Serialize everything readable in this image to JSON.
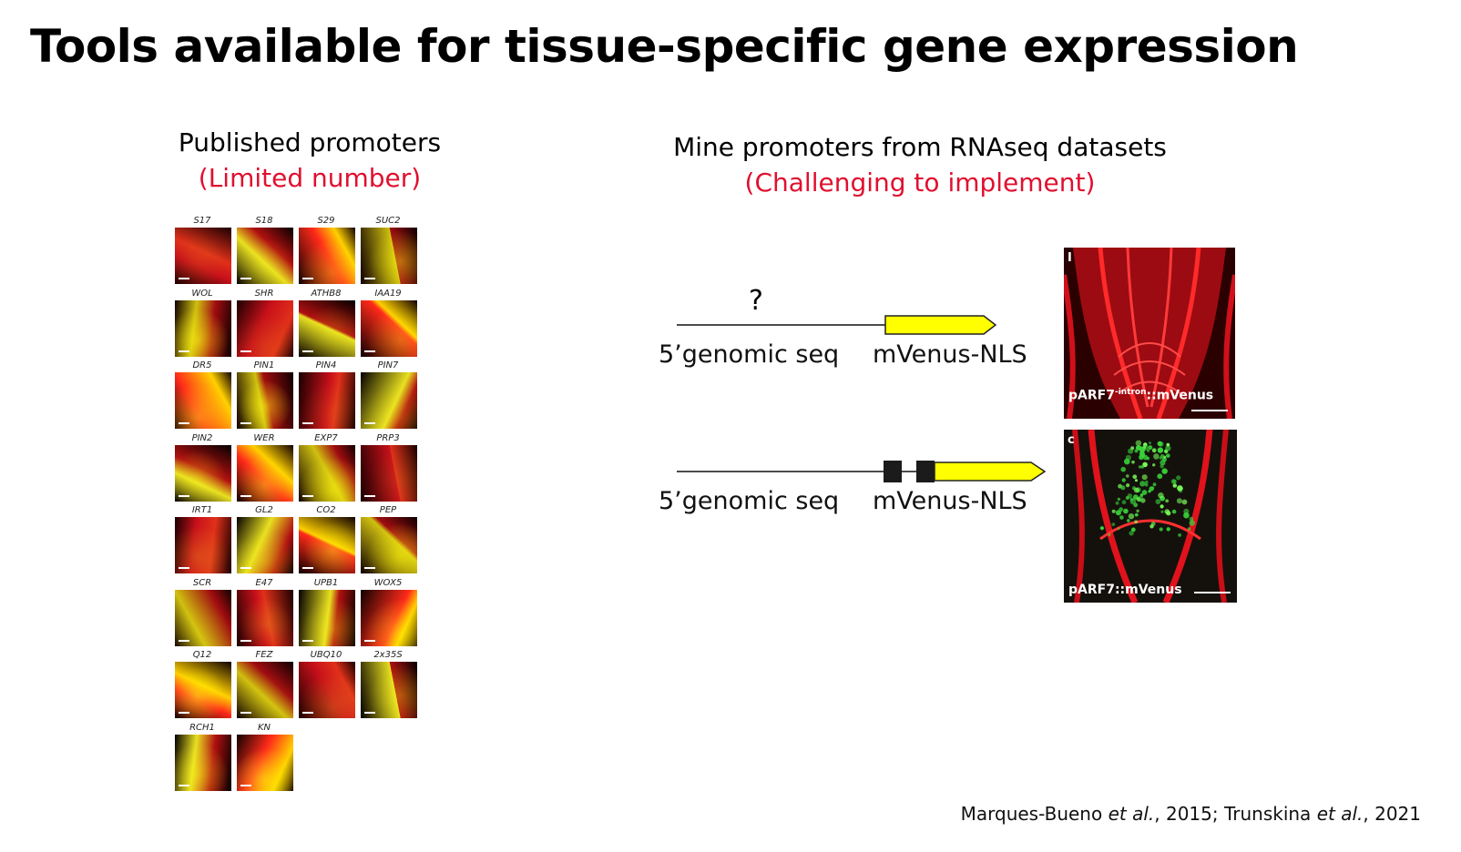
{
  "slide": {
    "title": "Tools available for tissue-specific gene expression",
    "left": {
      "heading": "Published promoters",
      "subheading": "(Limited number)",
      "promoter_labels": [
        "S17",
        "S18",
        "S29",
        "SUC2",
        "WOL",
        "SHR",
        "ATHB8",
        "IAA19",
        "DR5",
        "PIN1",
        "PIN4",
        "PIN7",
        "PIN2",
        "WER",
        "EXP7",
        "PRP3",
        "IRT1",
        "GL2",
        "CO2",
        "PEP",
        "SCR",
        "E47",
        "UPB1",
        "WOX5",
        "Q12",
        "FEZ",
        "UBQ10",
        "2x35S",
        "RCH1",
        "KN"
      ]
    },
    "right": {
      "heading": "Mine promoters from RNAseq datasets",
      "subheading": "(Challenging to implement)",
      "construct_top": {
        "question": "?",
        "left_label": "5’genomic seq",
        "right_label": "mVenus-NLS"
      },
      "construct_bottom": {
        "left_label": "5’genomic seq",
        "right_label": "mVenus-NLS"
      },
      "micrograph_top": {
        "panel_letter": "I",
        "caption_pre": "pARF7",
        "caption_sup": "-intron",
        "caption_post": "::mVenus"
      },
      "micrograph_bottom": {
        "panel_letter": "c",
        "caption": "pARF7::mVenus"
      }
    },
    "citation": {
      "a1": "Marques-Bueno ",
      "a2": "et al.",
      "a3": ", 2015; Trunskina ",
      "a4": "et al.",
      "a5": ", 2021"
    },
    "colors": {
      "accent_red": "#e0102f",
      "venus_yellow": "#ffff00",
      "signal_red": "#e8141e",
      "signal_green": "#39d43a"
    }
  }
}
